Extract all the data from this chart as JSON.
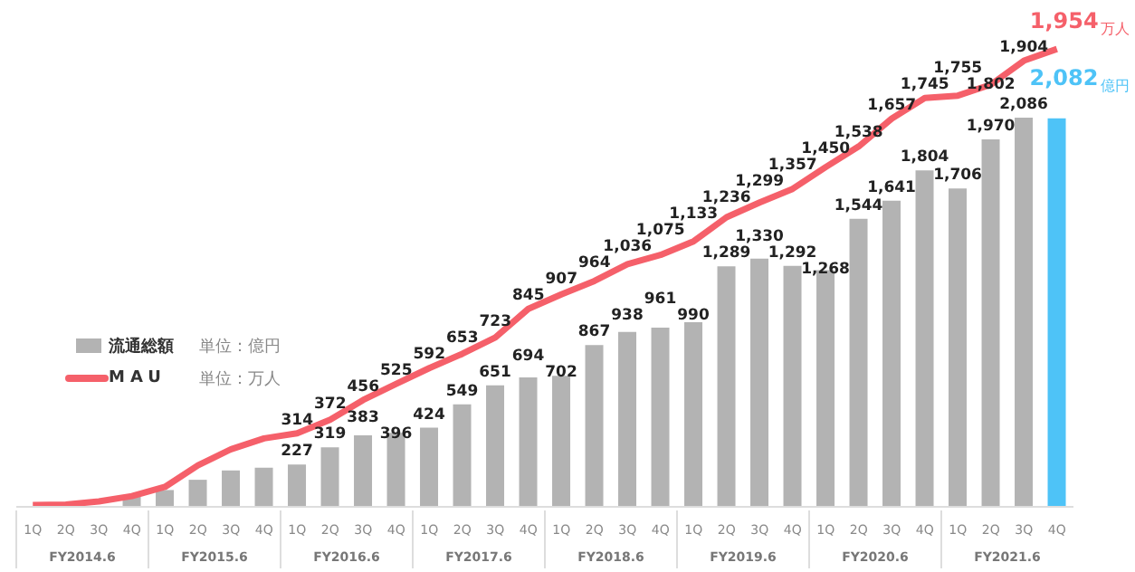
{
  "chart_data": {
    "type": "bar",
    "categories": [
      "1Q",
      "2Q",
      "3Q",
      "4Q",
      "1Q",
      "2Q",
      "3Q",
      "4Q",
      "1Q",
      "2Q",
      "3Q",
      "4Q",
      "1Q",
      "2Q",
      "3Q",
      "4Q",
      "1Q",
      "2Q",
      "3Q",
      "4Q",
      "1Q",
      "2Q",
      "3Q",
      "4Q",
      "1Q",
      "2Q",
      "3Q",
      "4Q",
      "1Q",
      "2Q",
      "3Q",
      "4Q"
    ],
    "series": [
      {
        "name": "流通総額",
        "color": "#b3b3b3",
        "colors": [
          "#b3b3b3",
          "#b3b3b3",
          "#b3b3b3",
          "#b3b3b3",
          "#b3b3b3",
          "#b3b3b3",
          "#b3b3b3",
          "#b3b3b3",
          "#b3b3b3",
          "#b3b3b3",
          "#b3b3b3",
          "#b3b3b3",
          "#b3b3b3",
          "#b3b3b3",
          "#b3b3b3",
          "#b3b3b3",
          "#b3b3b3",
          "#b3b3b3",
          "#b3b3b3",
          "#b3b3b3",
          "#b3b3b3",
          "#b3b3b3",
          "#b3b3b3",
          "#b3b3b3",
          "#b3b3b3",
          "#b3b3b3",
          "#b3b3b3",
          "#b3b3b3",
          "#b3b3b3",
          "#b3b3b3",
          "#b3b3b3",
          "#4ec3f7"
        ],
        "values": [
          null,
          null,
          null,
          55,
          90,
          145,
          195,
          210,
          227,
          319,
          383,
          396,
          424,
          549,
          651,
          694,
          702,
          867,
          938,
          961,
          990,
          1289,
          1330,
          1292,
          1268,
          1544,
          1641,
          1804,
          1706,
          1970,
          2086,
          2082
        ],
        "value_labels": [
          null,
          null,
          null,
          null,
          null,
          null,
          null,
          null,
          "227",
          "319",
          "383",
          "396",
          "424",
          "549",
          "651",
          "694",
          "702",
          "867",
          "938",
          "961",
          "990",
          "1,289",
          "1,330",
          "1,292",
          "1,268",
          "1,544",
          "1,641",
          "1,804",
          "1,706",
          "1,970",
          "2,086",
          "2,082"
        ]
      },
      {
        "name": "MAU",
        "type": "line",
        "axis": "y2",
        "color": "#f5606a",
        "values": [
          8,
          10,
          23,
          46,
          85,
          177,
          246,
          292,
          314,
          372,
          456,
          525,
          592,
          653,
          723,
          845,
          907,
          964,
          1036,
          1075,
          1133,
          1236,
          1299,
          1357,
          1450,
          1538,
          1657,
          1745,
          1755,
          1802,
          1904,
          1954
        ],
        "value_labels": [
          null,
          null,
          null,
          null,
          null,
          null,
          null,
          null,
          "314",
          "372",
          "456",
          "525",
          "592",
          "653",
          "723",
          "845",
          "907",
          "964",
          "1,036",
          "1,075",
          "1,133",
          "1,236",
          "1,299",
          "1,357",
          "1,450",
          "1,538",
          "1,657",
          "1,745",
          "1,755",
          "1,802",
          "1,904",
          "1,954"
        ]
      }
    ],
    "tick_labels": "x",
    "legend": "left",
    "marker": "none",
    "line_style": "solid",
    "annotations": [
      "FY2014.6",
      "FY2015.6",
      "FY2016.6",
      "FY2017.6",
      "FY2018.6",
      "FY2019.6",
      "FY2020.6",
      "FY2021.6",
      "単位：億円",
      "単位：万人",
      "億円",
      "万人"
    ]
  }
}
